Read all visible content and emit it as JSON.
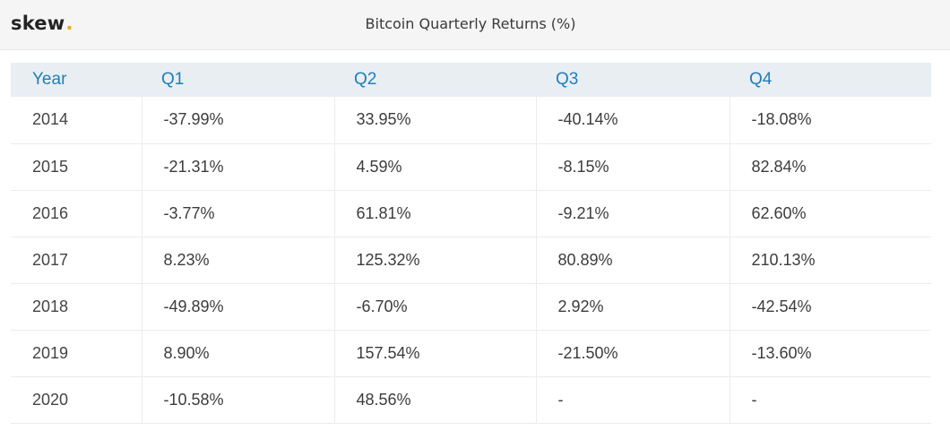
{
  "header": {
    "logo_text": "skew",
    "logo_dot": ".",
    "title": "Bitcoin Quarterly Returns (%)"
  },
  "colors": {
    "positive": "#16a45a",
    "negative": "#e0453f",
    "header_text": "#1f7fb8",
    "logo_dot": "#f0a81e"
  },
  "chart_data": {
    "type": "table",
    "title": "Bitcoin Quarterly Returns (%)",
    "columns": [
      "Year",
      "Q1",
      "Q2",
      "Q3",
      "Q4"
    ],
    "rows": [
      {
        "year": "2014",
        "q": [
          "-37.99%",
          "33.95%",
          "-40.14%",
          "-18.08%"
        ]
      },
      {
        "year": "2015",
        "q": [
          "-21.31%",
          "4.59%",
          "-8.15%",
          "82.84%"
        ]
      },
      {
        "year": "2016",
        "q": [
          "-3.77%",
          "61.81%",
          "-9.21%",
          "62.60%"
        ]
      },
      {
        "year": "2017",
        "q": [
          "8.23%",
          "125.32%",
          "80.89%",
          "210.13%"
        ]
      },
      {
        "year": "2018",
        "q": [
          "-49.89%",
          "-6.70%",
          "2.92%",
          "-42.54%"
        ]
      },
      {
        "year": "2019",
        "q": [
          "8.90%",
          "157.54%",
          "-21.50%",
          "-13.60%"
        ]
      },
      {
        "year": "2020",
        "q": [
          "-10.58%",
          "48.56%",
          "-",
          "-"
        ]
      }
    ]
  }
}
